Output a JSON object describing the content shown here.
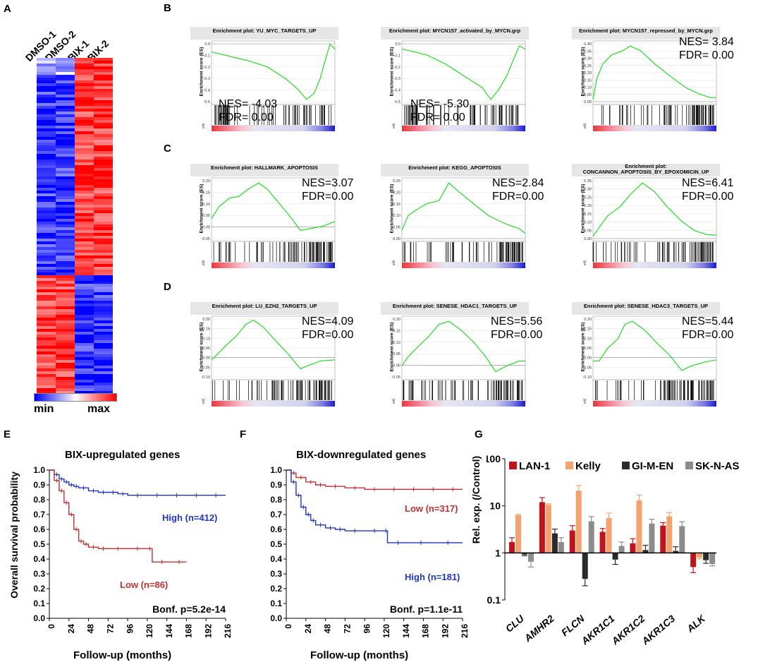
{
  "panel_labels": {
    "A": "A",
    "B": "B",
    "C": "C",
    "D": "D",
    "E": "E",
    "F": "F",
    "G": "G"
  },
  "heatmap": {
    "columns": [
      "DMSO-1",
      "DMSO-2",
      "BIX-1",
      "BIX-2"
    ],
    "scale_min": "min",
    "scale_max": "max",
    "colors": {
      "low": "#0000ff",
      "mid": "#ffffff",
      "high": "#ff0000"
    }
  },
  "gsea_common": {
    "ylabel": "Enrichment score (ES)",
    "curve_color": "#22dd22"
  },
  "gsea": [
    {
      "title": "Enrichment plot: YU_MYC_TARGETS_UP",
      "nes": "NES= -4.03",
      "fdr": "FDR= 0.00",
      "ticks": [
        "0.0",
        "-0.1",
        "-0.2",
        "-0.3",
        "-0.4",
        "-0.5"
      ]
    },
    {
      "title": "Enrichment plot: MYCN157_activated_by_MYCN.grp",
      "nes": "NES= -5.30",
      "fdr": "FDR= 0.00",
      "ticks": [
        "0.0",
        "-0.1",
        "-0.2",
        "-0.3",
        "-0.4",
        "-0.5"
      ]
    },
    {
      "title": "Enrichment plot: MYCN157_repressed_by_MYCN.grp",
      "nes": "NES= 3.84",
      "fdr": "FDR= 0.00",
      "ticks": [
        "0.40",
        "0.35",
        "0.30",
        "0.25",
        "0.20",
        "0.15",
        "0.10",
        "0.05",
        "0.00"
      ]
    },
    {
      "title": "Enrichment plot: HALLMARK_APOPTOSIS",
      "nes": "NES=3.07",
      "fdr": "FDR=0.00",
      "ticks": [
        "0.20",
        "0.15",
        "0.10",
        "0.05",
        "0.00",
        "-0.05"
      ]
    },
    {
      "title": "Enrichment plot: KEGG_APOPTOSIS",
      "nes": "NES=2.84",
      "fdr": "FDR=0.00",
      "ticks": [
        "0.25",
        "0.20",
        "0.15",
        "0.10",
        "0.05",
        "0.00"
      ]
    },
    {
      "title": "Enrichment plot:",
      "title2": "CONCANNON_APOPTOSIS_BY_EPOXOMICIN_UP",
      "nes": "NES=6.41",
      "fdr": "FDR=0.00",
      "ticks": [
        "0.35",
        "0.30",
        "0.25",
        "0.20",
        "0.15",
        "0.10",
        "0.05",
        "0.00"
      ]
    },
    {
      "title": "Enrichment plot: LU_EZH2_TARGETS_UP",
      "nes": "NES=4.09",
      "fdr": "FDR=0.00",
      "ticks": [
        "0.20",
        "0.15",
        "0.10",
        "0.05",
        "0.00",
        "-0.05",
        "-0.10"
      ]
    },
    {
      "title": "Enrichment plot: SENESE_HDAC1_TARGETS_UP",
      "nes": "NES=5.56",
      "fdr": "FDR=0.00",
      "ticks": [
        "0.20",
        "0.15",
        "0.10",
        "0.05",
        "0.00",
        "-0.05"
      ]
    },
    {
      "title": "Enrichment plot: SENESE_HDAC3_TARGETS_UP",
      "nes": "NES=5.44",
      "fdr": "FDR=0.00",
      "ticks": [
        "0.20",
        "0.15",
        "0.10",
        "0.05",
        "0.00",
        "-0.05",
        "-0.10"
      ]
    }
  ],
  "chart_data": [
    {
      "type": "line",
      "title": "BIX-upregulated genes",
      "xlabel": "Follow-up (months)",
      "ylabel": "Overall survival probability",
      "xticks": [
        "0",
        "24",
        "48",
        "72",
        "96",
        "120",
        "144",
        "168",
        "192",
        "216"
      ],
      "yticks": [
        "1.0",
        "0.9",
        "0.8",
        "0.7",
        "0.6",
        "0.5",
        "0.4",
        "0.3",
        "0.2",
        "0.1",
        "0.0"
      ],
      "xlim": [
        0,
        216
      ],
      "ylim": [
        0,
        1
      ],
      "series": [
        {
          "name": "High (n=412)",
          "color": "#1f35c4",
          "x": [
            0,
            6,
            12,
            18,
            24,
            30,
            36,
            48,
            60,
            72,
            84,
            96,
            120,
            144,
            168,
            192,
            216
          ],
          "y": [
            1.0,
            0.97,
            0.94,
            0.92,
            0.9,
            0.89,
            0.88,
            0.86,
            0.85,
            0.85,
            0.84,
            0.83,
            0.83,
            0.83,
            0.83,
            0.83,
            0.83
          ]
        },
        {
          "name": "Low (n=86)",
          "color": "#c03030",
          "x": [
            0,
            6,
            12,
            18,
            24,
            30,
            36,
            42,
            48,
            60,
            72,
            96,
            120,
            126,
            150,
            168
          ],
          "y": [
            1.0,
            0.93,
            0.86,
            0.78,
            0.7,
            0.6,
            0.52,
            0.5,
            0.48,
            0.47,
            0.47,
            0.47,
            0.47,
            0.38,
            0.38,
            0.38
          ]
        }
      ],
      "annotation": "Bonf. p=5.2e-14"
    },
    {
      "type": "line",
      "title": "BIX-downregulated genes",
      "xlabel": "Follow-up (months)",
      "ylabel": "",
      "xticks": [
        "0",
        "24",
        "48",
        "72",
        "96",
        "120",
        "144",
        "168",
        "192",
        "216"
      ],
      "yticks": [
        "1.0",
        "0.9",
        "0.8",
        "0.7",
        "0.6",
        "0.5",
        "0.4",
        "0.3",
        "0.2",
        "0.1",
        "0.0"
      ],
      "xlim": [
        0,
        216
      ],
      "ylim": [
        0,
        1
      ],
      "series": [
        {
          "name": "Low (n=317)",
          "color": "#c03030",
          "x": [
            0,
            6,
            12,
            24,
            36,
            48,
            72,
            96,
            120,
            144,
            168,
            192,
            216
          ],
          "y": [
            1.0,
            0.98,
            0.95,
            0.92,
            0.9,
            0.89,
            0.88,
            0.87,
            0.87,
            0.87,
            0.87,
            0.87,
            0.87
          ]
        },
        {
          "name": "High (n=181)",
          "color": "#1f35c4",
          "x": [
            0,
            6,
            12,
            18,
            24,
            30,
            36,
            48,
            60,
            72,
            96,
            120,
            124,
            150,
            180,
            216
          ],
          "y": [
            1.0,
            0.92,
            0.83,
            0.75,
            0.7,
            0.66,
            0.63,
            0.61,
            0.6,
            0.59,
            0.59,
            0.59,
            0.51,
            0.51,
            0.51,
            0.51
          ]
        }
      ],
      "annotation": "Bonf. p=1.1e-11"
    },
    {
      "type": "bar",
      "ylabel": "Rel. exp. (/Control)",
      "yscale": "log",
      "yticks": [
        "100",
        "10",
        "1",
        "0.1"
      ],
      "ylim": [
        0.1,
        100
      ],
      "categories": [
        "CLU",
        "AMHR2",
        "FLCN",
        "AKR1C1",
        "AKR1C2",
        "AKR1C3",
        "ALK"
      ],
      "series": [
        {
          "name": "LAN-1",
          "color": "#c0141c",
          "values": [
            1.7,
            12.0,
            3.0,
            2.8,
            1.6,
            3.8,
            0.5
          ],
          "errors": [
            0.4,
            3.0,
            0.8,
            0.5,
            0.4,
            0.6,
            0.12
          ]
        },
        {
          "name": "Kelly",
          "color": "#f5a36e",
          "values": [
            6.3,
            10.5,
            21.0,
            5.5,
            13.0,
            6.0,
            0.8
          ],
          "errors": [
            0.3,
            0.5,
            6.0,
            1.5,
            4.0,
            1.2,
            0.05
          ]
        },
        {
          "name": "GI-M-EN",
          "color": "#2b2b2b",
          "values": [
            0.92,
            2.6,
            0.28,
            0.72,
            1.15,
            1.1,
            0.7
          ],
          "errors": [
            0.05,
            0.6,
            0.08,
            0.15,
            0.3,
            0.25,
            0.1
          ]
        },
        {
          "name": "SK-N-AS",
          "color": "#8c8c8c",
          "values": [
            0.65,
            1.7,
            4.7,
            1.4,
            4.2,
            3.7,
            0.58
          ],
          "errors": [
            0.15,
            0.4,
            1.2,
            0.3,
            1.0,
            0.9,
            0.05
          ]
        }
      ]
    }
  ]
}
